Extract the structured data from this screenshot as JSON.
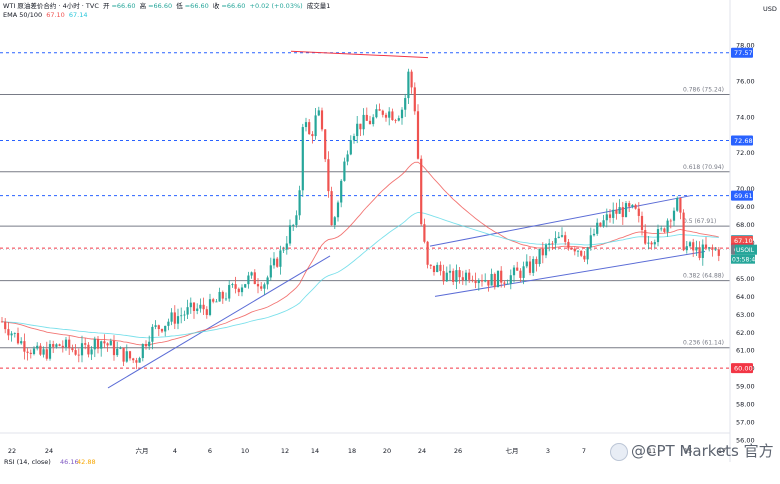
{
  "header": {
    "symbol_line": "WTI 原油差价合约 · 4小时 · TVC",
    "open_label": "开",
    "open_value": "=66.60",
    "high_label": "高",
    "high_value": "=66.60",
    "low_label": "低",
    "low_value": "=66.60",
    "close_label": "收",
    "close_value": "=66.60",
    "change": "+0.02 (+0.03%)",
    "volume_label": "成交量1",
    "ema_label": "EMA 50/100",
    "ema50": "67.10",
    "ema100": "67.14"
  },
  "currency": "USD",
  "rsi": {
    "label": "RSI (14, close)",
    "value1": "46.16",
    "value2": "42.88"
  },
  "watermark": "@CPT Markets 官方",
  "colors": {
    "up": "#26a69a",
    "down": "#ef5350",
    "ema50": "#ef5350",
    "ema100": "#5ad8e6",
    "trend": "#5b6cd6",
    "blue_dash": "#2962ff",
    "red_dash": "#f23645",
    "fib": "#787b86"
  },
  "chart_data": {
    "type": "candlestick",
    "y_range": [
      55.5,
      78.6
    ],
    "y_ticks": [
      "78.00",
      "76.00",
      "74.00",
      "72.00",
      "70.00",
      "69.00",
      "68.00",
      "67.00",
      "66.00",
      "65.00",
      "64.00",
      "63.00",
      "62.00",
      "61.00",
      "60.00",
      "59.00",
      "58.00",
      "57.00",
      "56.00"
    ],
    "x_ticks": [
      "22",
      "24",
      "六月",
      "4",
      "6",
      "10",
      "12",
      "14",
      "18",
      "20",
      "24",
      "26",
      "七月",
      "3",
      "7",
      "9",
      "11",
      "15",
      "17"
    ],
    "price_tags": [
      {
        "label": "77.57",
        "value": 77.57,
        "color": "#2962ff"
      },
      {
        "label": "72.68",
        "value": 72.68,
        "color": "#2962ff"
      },
      {
        "label": "69.61",
        "value": 69.61,
        "color": "#2962ff"
      },
      {
        "label": "67.14",
        "value": 67.14,
        "color": "#26c6da"
      },
      {
        "label": "67.10",
        "value": 67.1,
        "color": "#ef5350"
      },
      {
        "label": "66.69",
        "value": 66.69,
        "color": "#f23645"
      },
      {
        "label": "66.60",
        "value": 66.6,
        "color": "#787b86"
      },
      {
        "label": "60.00",
        "value": 60.0,
        "color": "#f23645"
      }
    ],
    "symbol_tag": {
      "label": "USOIL",
      "value": 66.6,
      "countdown": "03:58:44"
    },
    "fib_levels": [
      {
        "label": "0.786 (75.24)",
        "value": 75.24
      },
      {
        "label": "0.618 (70.94)",
        "value": 70.94
      },
      {
        "label": "0.5 (67.91)",
        "value": 67.91
      },
      {
        "label": "0.382 (64.88)",
        "value": 64.88
      },
      {
        "label": "0.236 (61.14)",
        "value": 61.14
      }
    ],
    "dashed_levels": [
      {
        "value": 77.57,
        "color": "blue"
      },
      {
        "value": 72.68,
        "color": "blue"
      },
      {
        "value": 69.61,
        "color": "blue"
      },
      {
        "value": 66.69,
        "color": "red"
      },
      {
        "value": 60.0,
        "color": "red"
      }
    ],
    "grid": false
  }
}
